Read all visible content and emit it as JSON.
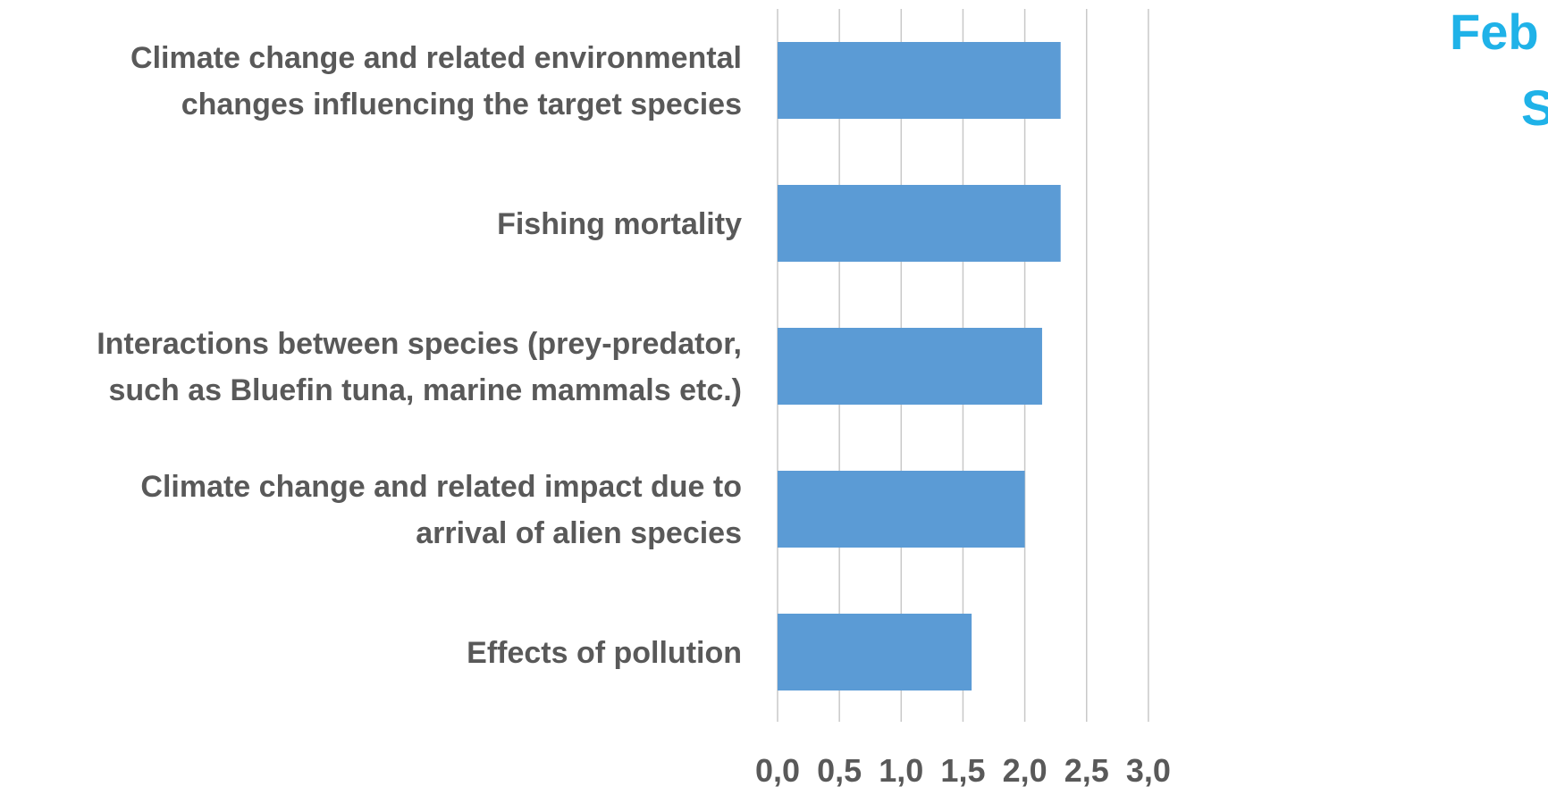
{
  "chart_data": {
    "type": "bar",
    "orientation": "horizontal",
    "categories": [
      [
        "Climate change and related environmental",
        "changes influencing the target species"
      ],
      [
        "Fishing mortality"
      ],
      [
        "Interactions between species (prey-predator,",
        "such as Bluefin tuna, marine mammals etc.)"
      ],
      [
        "Climate change and related impact due to",
        "arrival of alien species"
      ],
      [
        "Effects of pollution"
      ]
    ],
    "values": [
      2.29,
      2.29,
      2.14,
      2.0,
      1.57
    ],
    "xlim": [
      0,
      3.0
    ],
    "ticks": [
      0.0,
      0.5,
      1.0,
      1.5,
      2.0,
      2.5,
      3.0
    ],
    "tick_labels": [
      "0,0",
      "0,5",
      "1,0",
      "1,5",
      "2,0",
      "2,5",
      "3,0"
    ],
    "grid": true,
    "title_fragments": [
      "Feb",
      "S"
    ],
    "colors": {
      "bar": "#5b9bd5",
      "grid": "#c8c8c8",
      "label": "#595959",
      "title": "#1fb2e8"
    }
  }
}
